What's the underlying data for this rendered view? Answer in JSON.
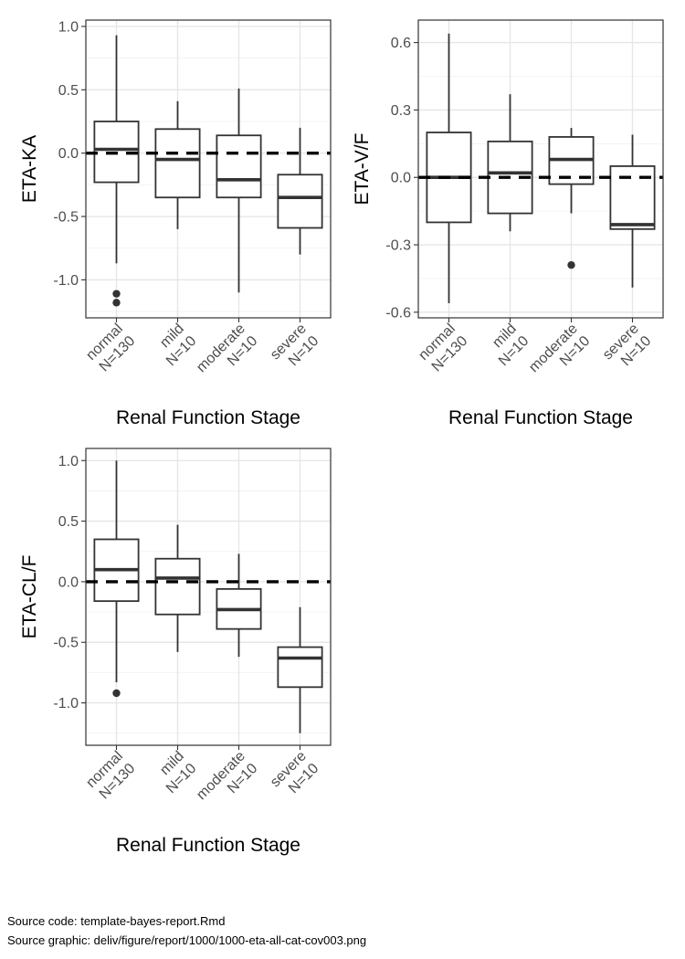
{
  "chart_data": [
    {
      "type": "boxplot",
      "xlabel": "Renal Function Stage",
      "ylabel": "ETA-KA",
      "categories": [
        {
          "name": "normal",
          "n_label": "N=130"
        },
        {
          "name": "mild",
          "n_label": "N=10"
        },
        {
          "name": "moderate",
          "n_label": "N=10"
        },
        {
          "name": "severe",
          "n_label": "N=10"
        }
      ],
      "ylim": [
        -1.3,
        1.05
      ],
      "yticks": [
        1.0,
        0.5,
        0.0,
        -0.5,
        -1.0
      ],
      "ytick_labels": [
        "1.0",
        "0.5",
        "0.0",
        "-0.5",
        "-1.0"
      ],
      "reference_line": 0,
      "grid": true,
      "boxes": [
        {
          "min": -0.87,
          "q1": -0.23,
          "median": 0.03,
          "q3": 0.25,
          "max": 0.93,
          "outliers": [
            -1.11,
            -1.18
          ]
        },
        {
          "min": -0.6,
          "q1": -0.35,
          "median": -0.05,
          "q3": 0.19,
          "max": 0.41,
          "outliers": []
        },
        {
          "min": -1.1,
          "q1": -0.35,
          "median": -0.21,
          "q3": 0.14,
          "max": 0.51,
          "outliers": []
        },
        {
          "min": -0.8,
          "q1": -0.59,
          "median": -0.35,
          "q3": -0.17,
          "max": 0.2,
          "outliers": []
        }
      ]
    },
    {
      "type": "boxplot",
      "xlabel": "Renal Function Stage",
      "ylabel": "ETA-V/F",
      "categories": [
        {
          "name": "normal",
          "n_label": "N=130"
        },
        {
          "name": "mild",
          "n_label": "N=10"
        },
        {
          "name": "moderate",
          "n_label": "N=10"
        },
        {
          "name": "severe",
          "n_label": "N=10"
        }
      ],
      "ylim": [
        -0.625,
        0.7
      ],
      "yticks": [
        0.6,
        0.3,
        0.0,
        -0.3,
        -0.6
      ],
      "ytick_labels": [
        "0.6",
        "0.3",
        "0.0",
        "-0.3",
        "-0.6"
      ],
      "reference_line": 0,
      "grid": true,
      "boxes": [
        {
          "min": -0.56,
          "q1": -0.2,
          "median": 0.0,
          "q3": 0.2,
          "max": 0.64,
          "outliers": []
        },
        {
          "min": -0.24,
          "q1": -0.16,
          "median": 0.02,
          "q3": 0.16,
          "max": 0.37,
          "outliers": []
        },
        {
          "min": -0.16,
          "q1": -0.03,
          "median": 0.08,
          "q3": 0.18,
          "max": 0.22,
          "outliers": [
            -0.39
          ]
        },
        {
          "min": -0.49,
          "q1": -0.23,
          "median": -0.21,
          "q3": 0.05,
          "max": 0.19,
          "outliers": []
        }
      ]
    },
    {
      "type": "boxplot",
      "xlabel": "Renal Function Stage",
      "ylabel": "ETA-CL/F",
      "categories": [
        {
          "name": "normal",
          "n_label": "N=130"
        },
        {
          "name": "mild",
          "n_label": "N=10"
        },
        {
          "name": "moderate",
          "n_label": "N=10"
        },
        {
          "name": "severe",
          "n_label": "N=10"
        }
      ],
      "ylim": [
        -1.35,
        1.1
      ],
      "yticks": [
        1.0,
        0.5,
        0.0,
        -0.5,
        -1.0
      ],
      "ytick_labels": [
        "1.0",
        "0.5",
        "0.0",
        "-0.5",
        "-1.0"
      ],
      "reference_line": 0,
      "grid": true,
      "boxes": [
        {
          "min": -0.83,
          "q1": -0.16,
          "median": 0.1,
          "q3": 0.35,
          "max": 1.0,
          "outliers": [
            -0.92
          ]
        },
        {
          "min": -0.58,
          "q1": -0.27,
          "median": 0.03,
          "q3": 0.19,
          "max": 0.47,
          "outliers": []
        },
        {
          "min": -0.62,
          "q1": -0.39,
          "median": -0.23,
          "q3": -0.06,
          "max": 0.23,
          "outliers": []
        },
        {
          "min": -1.25,
          "q1": -0.87,
          "median": -0.63,
          "q3": -0.54,
          "max": -0.21,
          "outliers": []
        }
      ]
    }
  ],
  "footer": {
    "source_code": "Source code: template-bayes-report.Rmd",
    "source_graphic": "Source graphic: deliv/figure/report/1000/1000-eta-all-cat-cov003.png"
  }
}
